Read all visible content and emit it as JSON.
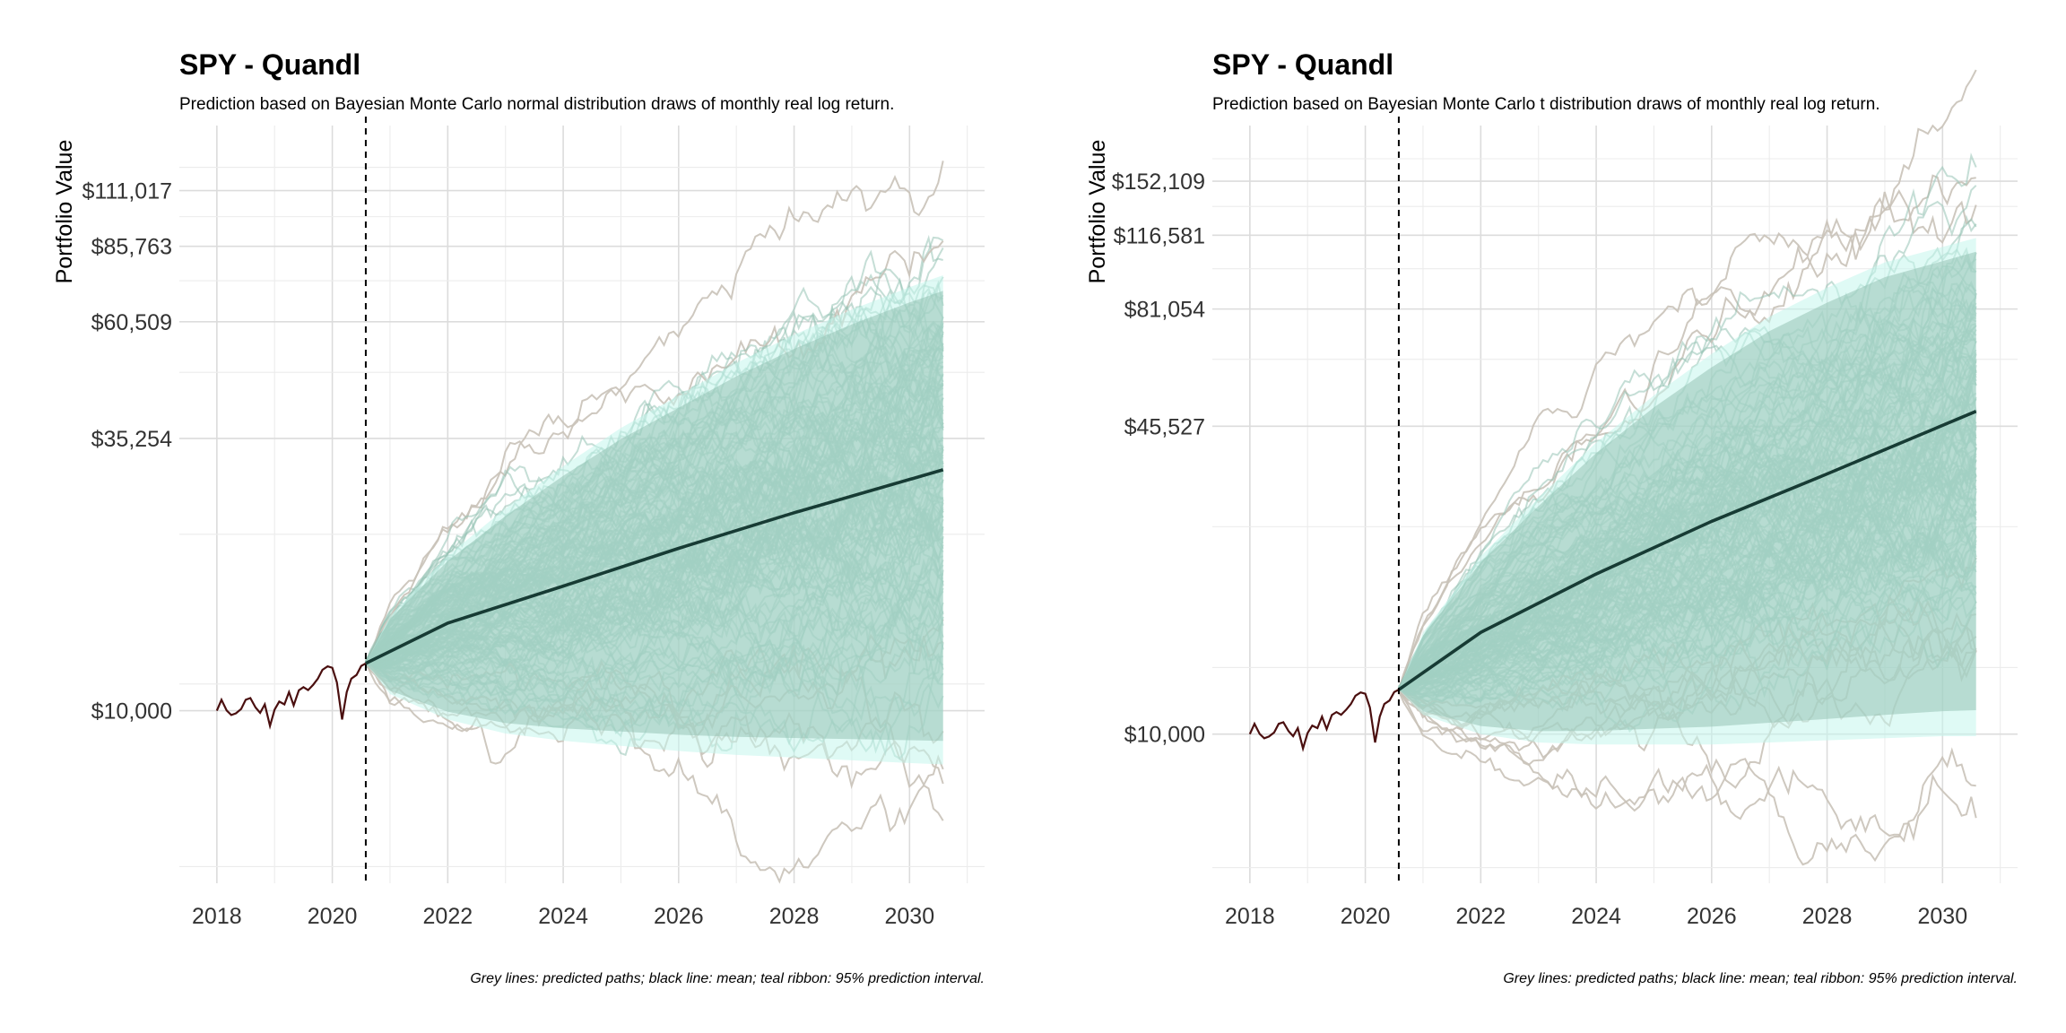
{
  "chart_data": [
    {
      "type": "line",
      "title": "SPY - Quandl",
      "subtitle": "Prediction based on Bayesian Monte Carlo normal distribution draws of monthly real log return.",
      "xlabel": "",
      "ylabel": "Portfolio Value",
      "caption": "Grey lines: predicted paths; black line: mean; teal ribbon: 95% prediction interval.",
      "y_scale": "log",
      "xlim": [
        2017.35,
        2031.3
      ],
      "ylim": [
        4500,
        150000
      ],
      "x_ticks": [
        2018,
        2020,
        2022,
        2024,
        2026,
        2028,
        2030
      ],
      "x_tick_labels": [
        "2018",
        "2020",
        "2022",
        "2024",
        "2026",
        "2028",
        "2030"
      ],
      "y_ticks": [
        10000,
        35254,
        60509,
        85763,
        111017
      ],
      "y_tick_labels": [
        "$10,000",
        "$35,254",
        "$60,509",
        "$85,763",
        "$111,017"
      ],
      "grid": true,
      "forecast_start_line": {
        "x": 2020.58,
        "style": "dashed"
      },
      "series": [
        {
          "role": "history",
          "color": "#4a0f0f",
          "x": [
            2018.0,
            2018.08,
            2018.17,
            2018.25,
            2018.33,
            2018.42,
            2018.5,
            2018.58,
            2018.67,
            2018.75,
            2018.83,
            2018.92,
            2019.0,
            2019.08,
            2019.17,
            2019.25,
            2019.33,
            2019.42,
            2019.5,
            2019.58,
            2019.67,
            2019.75,
            2019.83,
            2019.92,
            2020.0,
            2020.08,
            2020.17,
            2020.25,
            2020.33,
            2020.42,
            2020.5,
            2020.58
          ],
          "y": [
            10000,
            10520,
            10010,
            9800,
            9880,
            10080,
            10520,
            10600,
            10150,
            9900,
            10300,
            9320,
            10050,
            10430,
            10300,
            10900,
            10250,
            10990,
            11150,
            11000,
            11280,
            11600,
            12080,
            12280,
            12200,
            11400,
            9600,
            10900,
            11600,
            11800,
            12300,
            12450
          ]
        },
        {
          "role": "mean",
          "color": "#173b34",
          "x": [
            2020.58,
            2022,
            2024,
            2026,
            2028,
            2030.58
          ],
          "y": [
            12450,
            15000,
            17800,
            21200,
            25000,
            30500
          ]
        }
      ],
      "ribbon_95": {
        "color": "#c4f5ec",
        "x": [
          2020.58,
          2021,
          2022,
          2023,
          2024,
          2025,
          2026,
          2027,
          2028,
          2029,
          2030,
          2030.58
        ],
        "lower": [
          12450,
          10800,
          9600,
          9000,
          8700,
          8500,
          8300,
          8150,
          8050,
          7950,
          7850,
          7800
        ],
        "upper": [
          12450,
          15500,
          20500,
          25500,
          31000,
          37000,
          43000,
          50000,
          57000,
          64000,
          71000,
          75000
        ]
      },
      "paths": {
        "count": 400,
        "color": "#c9c2b8",
        "fill_color": "#96c2b4"
      }
    },
    {
      "type": "line",
      "title": "SPY - Quandl",
      "subtitle": "Prediction based on Bayesian Monte Carlo t distribution draws of monthly real log return.",
      "xlabel": "",
      "ylabel": "Portfolio Value",
      "caption": "Grey lines: predicted paths; black line: mean; teal ribbon: 95% prediction interval.",
      "y_scale": "log",
      "xlim": [
        2017.35,
        2031.3
      ],
      "ylim": [
        4800,
        200000
      ],
      "x_ticks": [
        2018,
        2020,
        2022,
        2024,
        2026,
        2028,
        2030
      ],
      "x_tick_labels": [
        "2018",
        "2020",
        "2022",
        "2024",
        "2026",
        "2028",
        "2030"
      ],
      "y_ticks": [
        10000,
        45527,
        81054,
        116581,
        152109
      ],
      "y_tick_labels": [
        "$10,000",
        "$45,527",
        "$81,054",
        "$116,581",
        "$152,109"
      ],
      "grid": true,
      "forecast_start_line": {
        "x": 2020.58,
        "style": "dashed"
      },
      "series": [
        {
          "role": "history",
          "color": "#4a0f0f",
          "x": [
            2018.0,
            2018.08,
            2018.17,
            2018.25,
            2018.33,
            2018.42,
            2018.5,
            2018.58,
            2018.67,
            2018.75,
            2018.83,
            2018.92,
            2019.0,
            2019.08,
            2019.17,
            2019.25,
            2019.33,
            2019.42,
            2019.5,
            2019.58,
            2019.67,
            2019.75,
            2019.83,
            2019.92,
            2020.0,
            2020.08,
            2020.17,
            2020.25,
            2020.33,
            2020.42,
            2020.5,
            2020.58
          ],
          "y": [
            10000,
            10520,
            10010,
            9800,
            9880,
            10080,
            10520,
            10600,
            10150,
            9900,
            10300,
            9320,
            10050,
            10430,
            10300,
            10900,
            10250,
            10990,
            11150,
            11000,
            11280,
            11600,
            12080,
            12280,
            12200,
            11400,
            9600,
            10900,
            11600,
            11800,
            12300,
            12450
          ]
        },
        {
          "role": "mean",
          "color": "#173b34",
          "x": [
            2020.58,
            2022,
            2024,
            2026,
            2028,
            2030.58
          ],
          "y": [
            12450,
            16500,
            22000,
            28500,
            36000,
            49000
          ]
        }
      ],
      "ribbon_95": {
        "color": "#c4f5ec",
        "x": [
          2020.58,
          2021,
          2022,
          2023,
          2024,
          2025,
          2026,
          2027,
          2028,
          2029,
          2030,
          2030.58
        ],
        "lower": [
          12450,
          11000,
          10000,
          9600,
          9500,
          9500,
          9500,
          9600,
          9700,
          9800,
          9900,
          9900
        ],
        "upper": [
          12450,
          16500,
          24000,
          32000,
          42000,
          53000,
          65000,
          78000,
          90000,
          102000,
          110000,
          115000
        ]
      },
      "paths": {
        "count": 400,
        "color": "#c9c2b8",
        "fill_color": "#96c2b4"
      }
    }
  ]
}
